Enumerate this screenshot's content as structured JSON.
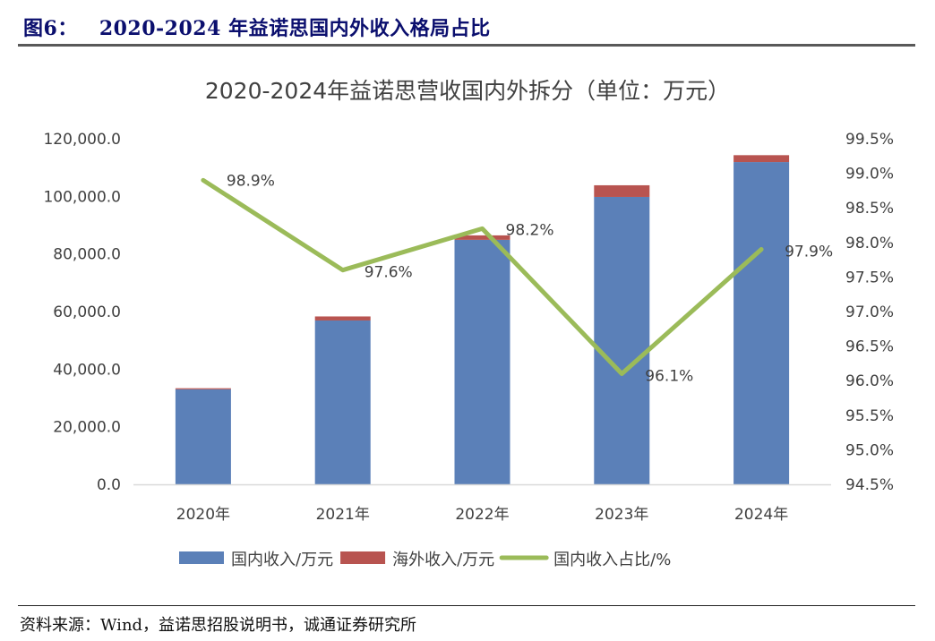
{
  "figure": {
    "number": "图6：",
    "title": "2020-2024 年益诺思国内外收入格局占比"
  },
  "source_note": "资料来源：Wind，益诺思招股说明书，诚通证券研究所",
  "chart_data": {
    "type": "bar",
    "stacked": true,
    "title": "2020-2024年益诺思营收国内外拆分（单位：万元）",
    "categories": [
      "2020年",
      "2021年",
      "2022年",
      "2023年",
      "2024年"
    ],
    "series": [
      {
        "name": "国内收入/万元",
        "type": "bar",
        "axis": "left",
        "color": "#5b80b8",
        "values": [
          33000,
          56900,
          84900,
          99800,
          111900
        ]
      },
      {
        "name": "海外收入/万元",
        "type": "bar",
        "axis": "left",
        "color": "#b85450",
        "values": [
          370,
          1400,
          1550,
          4050,
          2400
        ]
      },
      {
        "name": "国内收入占比/%",
        "type": "line",
        "axis": "right",
        "color": "#9bbb59",
        "values": [
          98.9,
          97.6,
          98.2,
          96.1,
          97.9
        ],
        "labels": [
          "98.9%",
          "97.6%",
          "98.2%",
          "96.1%",
          "97.9%"
        ]
      }
    ],
    "y_left": {
      "ylim": [
        0,
        120000
      ],
      "ticks": [
        "0.0",
        "20,000.0",
        "40,000.0",
        "60,000.0",
        "80,000.0",
        "100,000.0",
        "120,000.0"
      ],
      "tick_values": [
        0,
        20000,
        40000,
        60000,
        80000,
        100000,
        120000
      ]
    },
    "y_right": {
      "ylim": [
        94.5,
        99.5
      ],
      "ticks": [
        "94.5%",
        "95.0%",
        "95.5%",
        "96.0%",
        "96.5%",
        "97.0%",
        "97.5%",
        "98.0%",
        "98.5%",
        "99.0%",
        "99.5%"
      ],
      "tick_values": [
        94.5,
        95.0,
        95.5,
        96.0,
        96.5,
        97.0,
        97.5,
        98.0,
        98.5,
        99.0,
        99.5
      ]
    },
    "grid": false,
    "legend": "bottom",
    "xlabel": "",
    "ylabel": ""
  }
}
